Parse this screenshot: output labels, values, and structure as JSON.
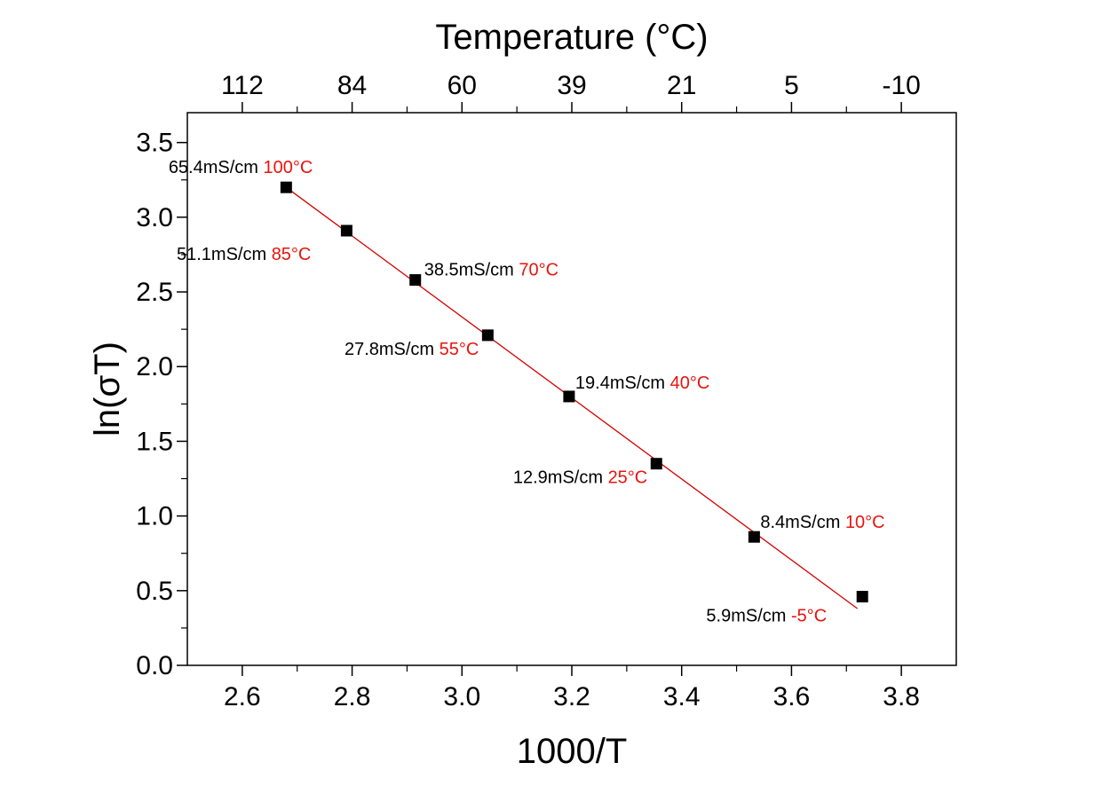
{
  "chart_data": {
    "type": "scatter",
    "xlabel": "1000/T",
    "ylabel": "ln(σT)",
    "top_axis_title": "Temperature (°C)",
    "xlim": [
      2.5,
      3.9
    ],
    "ylim": [
      0.0,
      3.7
    ],
    "x_ticks": [
      "2.6",
      "2.8",
      "3.0",
      "3.2",
      "3.4",
      "3.6",
      "3.8"
    ],
    "x_tick_values": [
      2.6,
      2.8,
      3.0,
      3.2,
      3.4,
      3.6,
      3.8
    ],
    "y_ticks": [
      "0.0",
      "0.5",
      "1.0",
      "1.5",
      "2.0",
      "2.5",
      "3.0",
      "3.5"
    ],
    "y_tick_values": [
      0.0,
      0.5,
      1.0,
      1.5,
      2.0,
      2.5,
      3.0,
      3.5
    ],
    "top_ticks": [
      {
        "label": "112",
        "x": 2.6
      },
      {
        "label": "84",
        "x": 2.8
      },
      {
        "label": "60",
        "x": 3.0
      },
      {
        "label": "39",
        "x": 3.2
      },
      {
        "label": "21",
        "x": 3.4
      },
      {
        "label": "5",
        "x": 3.6
      },
      {
        "label": "-10",
        "x": 3.8
      }
    ],
    "points": [
      {
        "x": 2.68,
        "y": 3.2,
        "conductivity": "65.4mS/cm",
        "temp": "100°C"
      },
      {
        "x": 2.79,
        "y": 2.91,
        "conductivity": "51.1mS/cm",
        "temp": "85°C"
      },
      {
        "x": 2.915,
        "y": 2.58,
        "conductivity": "38.5mS/cm",
        "temp": "70°C"
      },
      {
        "x": 3.047,
        "y": 2.21,
        "conductivity": "27.8mS/cm",
        "temp": "55°C"
      },
      {
        "x": 3.195,
        "y": 1.8,
        "conductivity": "19.4mS/cm",
        "temp": "40°C"
      },
      {
        "x": 3.354,
        "y": 1.35,
        "conductivity": "12.9mS/cm",
        "temp": "25°C"
      },
      {
        "x": 3.532,
        "y": 0.86,
        "conductivity": "8.4mS/cm",
        "temp": "10°C"
      },
      {
        "x": 3.729,
        "y": 0.46,
        "conductivity": "5.9mS/cm",
        "temp": "-5°C"
      }
    ],
    "fit_line": {
      "x": [
        2.68,
        3.72
      ],
      "y": [
        3.2,
        0.38
      ]
    },
    "colors": {
      "marker": "#000000",
      "fit": "#d40000",
      "temp_text": "#e8140c"
    },
    "grid": false,
    "legend": "none"
  }
}
